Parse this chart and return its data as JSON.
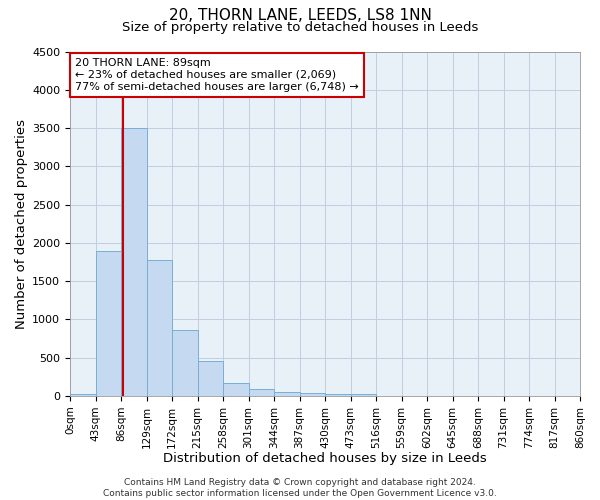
{
  "title": "20, THORN LANE, LEEDS, LS8 1NN",
  "subtitle": "Size of property relative to detached houses in Leeds",
  "xlabel": "Distribution of detached houses by size in Leeds",
  "ylabel": "Number of detached properties",
  "property_label": "20 THORN LANE: 89sqm",
  "annotation_line1": "← 23% of detached houses are smaller (2,069)",
  "annotation_line2": "77% of semi-detached houses are larger (6,748) →",
  "bin_edges": [
    0,
    43,
    86,
    129,
    172,
    215,
    258,
    301,
    344,
    387,
    430,
    473,
    516,
    559,
    602,
    645,
    688,
    731,
    774,
    817,
    860
  ],
  "bar_values": [
    30,
    1900,
    3500,
    1780,
    860,
    460,
    175,
    90,
    50,
    40,
    30,
    20,
    0,
    0,
    0,
    0,
    0,
    0,
    0,
    0
  ],
  "bar_color": "#c5d9f0",
  "bar_edge_color": "#7aaed6",
  "vline_x": 89,
  "vline_color": "#cc0000",
  "annotation_box_color": "#cc0000",
  "ylim": [
    0,
    4500
  ],
  "yticks": [
    0,
    500,
    1000,
    1500,
    2000,
    2500,
    3000,
    3500,
    4000,
    4500
  ],
  "tick_labels": [
    "0sqm",
    "43sqm",
    "86sqm",
    "129sqm",
    "172sqm",
    "215sqm",
    "258sqm",
    "301sqm",
    "344sqm",
    "387sqm",
    "430sqm",
    "473sqm",
    "516sqm",
    "559sqm",
    "602sqm",
    "645sqm",
    "688sqm",
    "731sqm",
    "774sqm",
    "817sqm",
    "860sqm"
  ],
  "footer1": "Contains HM Land Registry data © Crown copyright and database right 2024.",
  "footer2": "Contains public sector information licensed under the Open Government Licence v3.0.",
  "bg_color": "#ffffff",
  "plot_bg_color": "#e8f0f8",
  "grid_color": "#c0cfe0"
}
